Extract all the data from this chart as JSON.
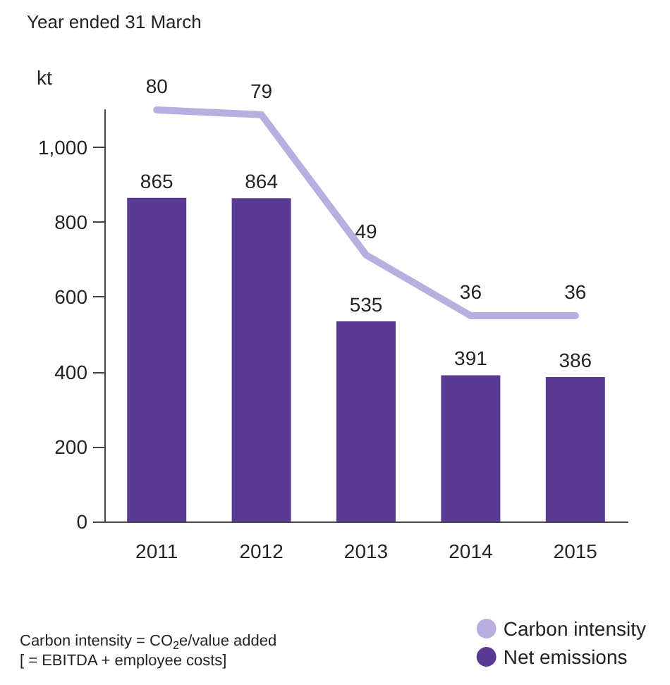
{
  "chart_data": {
    "type": "bar",
    "title": "Year ended 31 March",
    "ylabel": "kt",
    "categories": [
      "2011",
      "2012",
      "2013",
      "2014",
      "2015"
    ],
    "series": [
      {
        "name": "Carbon intensity",
        "type": "line",
        "axis": "y2",
        "color": "#b9aee0",
        "values": [
          80,
          79,
          49,
          36,
          36
        ]
      },
      {
        "name": "Net emissions",
        "color": "#5b3a96",
        "values": [
          865,
          864,
          535,
          391,
          386
        ]
      }
    ],
    "ylim": [
      0,
      1100
    ],
    "yticks": [
      0,
      200,
      400,
      600,
      800,
      {
        "value": 1000,
        "label": "1,000"
      }
    ],
    "data_labels": true,
    "grid": false,
    "legend": "bottom right",
    "marker": "none",
    "line_style": "solid",
    "annotations": [
      "Carbon intensity = CO$_{2}$e/value added\n[ = EBITDA + employee costs]"
    ]
  }
}
